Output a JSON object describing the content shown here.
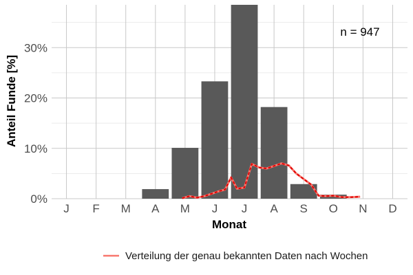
{
  "chart_data": {
    "type": "bar",
    "xlabel": "Monat",
    "ylabel": "Anteil Funde [%]",
    "categories": [
      "J",
      "F",
      "M",
      "A",
      "M",
      "J",
      "J",
      "A",
      "S",
      "O",
      "N",
      "D"
    ],
    "values": [
      0,
      0,
      0,
      1.9,
      10.1,
      23.3,
      38.5,
      18.2,
      2.9,
      0.8,
      0,
      0
    ],
    "ylim": [
      0,
      38.5
    ],
    "y_ticks": [
      0,
      10,
      20,
      30
    ],
    "y_tick_labels": [
      "0%",
      "10%",
      "20%",
      "30%"
    ],
    "bar_color": "#595959",
    "grid": true,
    "annotation": "n = 947",
    "line_series": {
      "name": "Verteilung der genau bekannten Daten nach Wochen",
      "color": "#f8766d",
      "dash_color": "#e00000",
      "x_month_units": [
        3.9,
        4.15,
        4.4,
        4.65,
        4.9,
        5.15,
        5.35,
        5.55,
        5.75,
        6.0,
        6.25,
        6.5,
        6.75,
        7.0,
        7.25,
        7.5,
        7.75,
        8.0,
        8.25,
        8.5,
        8.75,
        9.0,
        9.3,
        9.6,
        9.9
      ],
      "y": [
        0.1,
        0.5,
        0.2,
        0.5,
        1.0,
        1.5,
        1.8,
        4.2,
        2.0,
        2.2,
        6.9,
        6.2,
        6.0,
        6.5,
        7.0,
        6.6,
        5.0,
        3.9,
        2.8,
        0.6,
        0.5,
        0.6,
        0.3,
        0.3,
        0.4
      ]
    },
    "legend_position": "bottom"
  }
}
